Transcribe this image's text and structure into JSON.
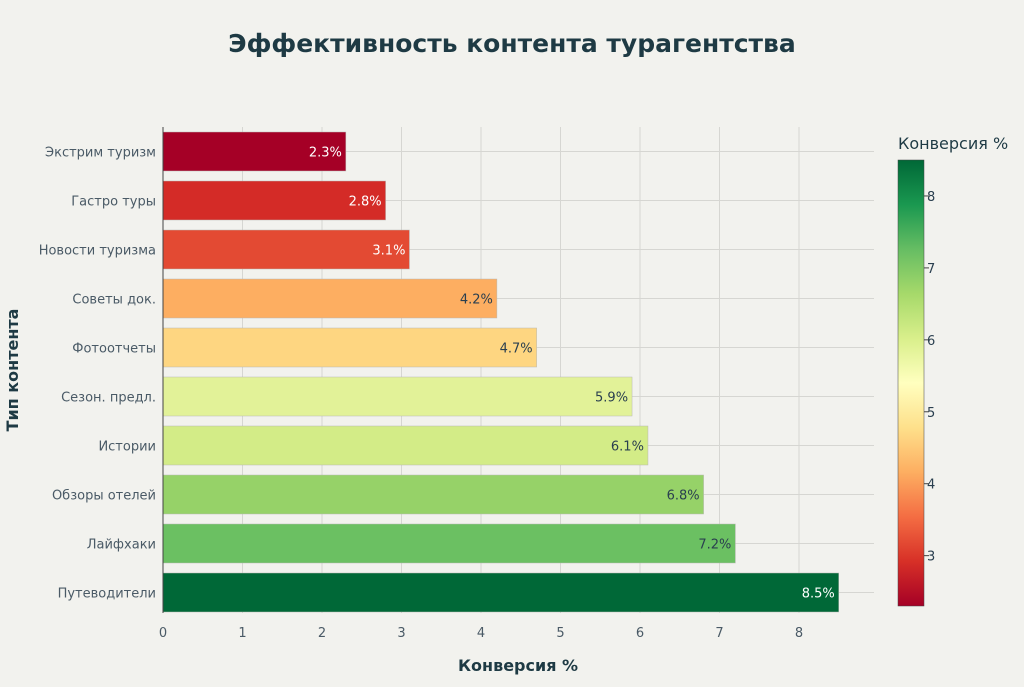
{
  "chart_data": {
    "type": "bar",
    "orientation": "horizontal",
    "title": "Эффективность контента турагентства",
    "xlabel": "Конверсия %",
    "ylabel": "Тип контента",
    "xlim": [
      0,
      8.95
    ],
    "x_ticks": [
      "0",
      "1",
      "2",
      "3",
      "4",
      "5",
      "6",
      "7",
      "8"
    ],
    "grid": true,
    "categories": [
      "Экстрим туризм",
      "Гастро туры",
      "Новости туризма",
      "Советы док.",
      "Фотоотчеты",
      "Сезон. предл.",
      "Истории",
      "Обзоры отелей",
      "Лайфхаки",
      "Путеводители"
    ],
    "values": [
      2.3,
      2.8,
      3.1,
      4.2,
      4.7,
      5.9,
      6.1,
      6.8,
      7.2,
      8.5
    ],
    "data_labels": [
      "2.3%",
      "2.8%",
      "3.1%",
      "4.2%",
      "4.7%",
      "5.9%",
      "6.1%",
      "6.8%",
      "7.2%",
      "8.5%"
    ],
    "bar_colors": [
      "#a50026",
      "#d42b27",
      "#e34a33",
      "#fdae61",
      "#fed681",
      "#e2f298",
      "#d3ec87",
      "#96d268",
      "#6bc062",
      "#006837"
    ],
    "label_colors": [
      "#ffffff",
      "#ffffff",
      "#ffffff",
      "#2a3f4f",
      "#2a3f4f",
      "#2a3f4f",
      "#2a3f4f",
      "#2a3f4f",
      "#2a3f4f",
      "#ffffff"
    ],
    "colorscale": "RdYlGn",
    "colorbar": {
      "title": "Конверсия %",
      "range": [
        2.3,
        8.5
      ],
      "ticks": [
        "3",
        "4",
        "5",
        "6",
        "7",
        "8"
      ],
      "tick_values": [
        3,
        4,
        5,
        6,
        7,
        8
      ],
      "stops": [
        "#a50026",
        "#d73027",
        "#f46d43",
        "#fdae61",
        "#fee08b",
        "#ffffbf",
        "#d9ef8b",
        "#a6d96a",
        "#66bd63",
        "#1a9850",
        "#006837"
      ]
    }
  }
}
